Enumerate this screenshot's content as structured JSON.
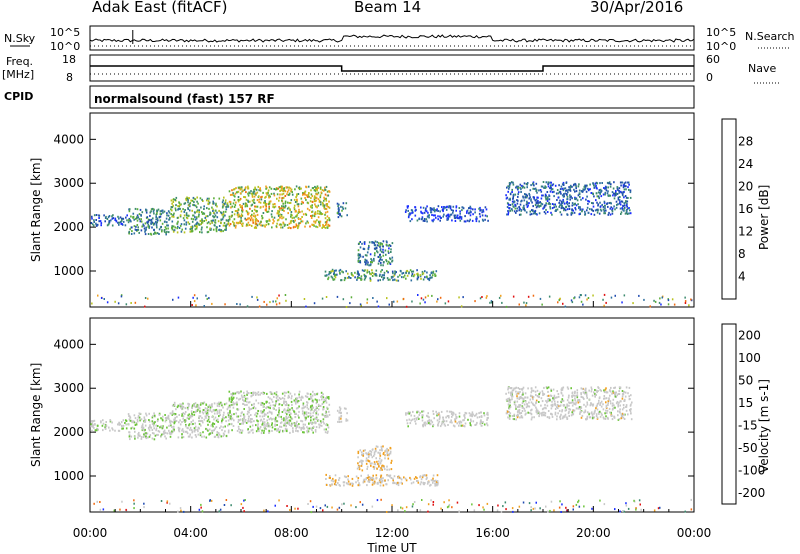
{
  "header": {
    "radar": "Adak East (fitACF)",
    "beam": "Beam 14",
    "date": "30/Apr/2016"
  },
  "noise_panel": {
    "left_label": "N.Sky",
    "right_label": "N.Search",
    "ticks": [
      "10^5",
      "10^0"
    ]
  },
  "freq_panel": {
    "left_label_1": "Freq.",
    "left_label_2": "[MHz]",
    "left_ticks": [
      "18",
      "8"
    ],
    "right_label": "Nave",
    "right_ticks": [
      "60",
      "0"
    ]
  },
  "cpid_panel": {
    "label": "CPID",
    "text": "normalsound (fast) 157 RF"
  },
  "colors": {
    "power_scale": [
      "#1a2eff",
      "#1f4ab0",
      "#2e6fa0",
      "#3c8a6e",
      "#5cae3a",
      "#b8c21e",
      "#f0a020",
      "#f06a10",
      "#e01010"
    ],
    "velocity_scale": [
      "#1a2eff",
      "#1f4ab0",
      "#3c8a6e",
      "#6cc43a",
      "#c8c8c8",
      "#c8c8c8",
      "#f0a020",
      "#f06a10",
      "#e01010"
    ]
  },
  "chart_data": [
    {
      "type": "heatmap",
      "title": "Power",
      "xlabel": "",
      "ylabel": "Slant Range [km]",
      "ylim": [
        180,
        4600
      ],
      "xlim_hours": [
        0,
        24
      ],
      "y_ticks": [
        1000,
        2000,
        3000,
        4000
      ],
      "colorbar": {
        "label": "Power [dB]",
        "ticks": [
          "4",
          "8",
          "12",
          "16",
          "20",
          "24",
          "28"
        ],
        "range": [
          0,
          30
        ]
      },
      "echo_regions": [
        {
          "t0": 0.0,
          "t1": 1.5,
          "r0": 2050,
          "r1": 2300,
          "level": 0.25
        },
        {
          "t0": 1.5,
          "t1": 3.2,
          "r0": 1850,
          "r1": 2450,
          "level": 0.35
        },
        {
          "t0": 3.2,
          "t1": 5.5,
          "r0": 1900,
          "r1": 2700,
          "level": 0.45
        },
        {
          "t0": 5.5,
          "t1": 9.5,
          "r0": 2000,
          "r1": 2950,
          "level": 0.6
        },
        {
          "t0": 9.8,
          "t1": 10.2,
          "r0": 2250,
          "r1": 2600,
          "level": 0.3
        },
        {
          "t0": 10.6,
          "t1": 12.0,
          "r0": 1150,
          "r1": 1700,
          "level": 0.3
        },
        {
          "t0": 9.3,
          "t1": 13.8,
          "r0": 800,
          "r1": 1050,
          "level": 0.4
        },
        {
          "t0": 12.5,
          "t1": 15.8,
          "r0": 2150,
          "r1": 2500,
          "level": 0.15
        },
        {
          "t0": 16.5,
          "t1": 21.5,
          "r0": 2300,
          "r1": 3050,
          "level": 0.25
        }
      ]
    },
    {
      "type": "heatmap",
      "title": "Velocity",
      "xlabel": "Time UT",
      "ylabel": "Slant Range [km]",
      "ylim": [
        180,
        4600
      ],
      "xlim_hours": [
        0,
        24
      ],
      "x_ticks": [
        "00:00",
        "04:00",
        "08:00",
        "12:00",
        "16:00",
        "20:00",
        "00:00"
      ],
      "y_ticks": [
        1000,
        2000,
        3000,
        4000
      ],
      "colorbar": {
        "label": "Velocity [m s-1]",
        "ticks": [
          "200",
          "100",
          "50",
          "15",
          "-15",
          "-50",
          "-100",
          "-200"
        ],
        "range": [
          -250,
          250
        ]
      },
      "echo_regions": [
        {
          "t0": 0.0,
          "t1": 1.5,
          "r0": 2050,
          "r1": 2300,
          "level": 0.5
        },
        {
          "t0": 1.5,
          "t1": 3.2,
          "r0": 1850,
          "r1": 2450,
          "level": 0.5
        },
        {
          "t0": 3.2,
          "t1": 5.5,
          "r0": 1900,
          "r1": 2700,
          "level": 0.5
        },
        {
          "t0": 5.5,
          "t1": 9.5,
          "r0": 2000,
          "r1": 2950,
          "level": 0.5
        },
        {
          "t0": 9.8,
          "t1": 10.2,
          "r0": 2250,
          "r1": 2600,
          "level": 0.55
        },
        {
          "t0": 10.6,
          "t1": 12.0,
          "r0": 1150,
          "r1": 1700,
          "level": 0.62
        },
        {
          "t0": 9.3,
          "t1": 13.8,
          "r0": 800,
          "r1": 1050,
          "level": 0.62
        },
        {
          "t0": 12.5,
          "t1": 15.8,
          "r0": 2150,
          "r1": 2500,
          "level": 0.55
        },
        {
          "t0": 16.5,
          "t1": 21.5,
          "r0": 2300,
          "r1": 3050,
          "level": 0.55
        }
      ]
    }
  ]
}
